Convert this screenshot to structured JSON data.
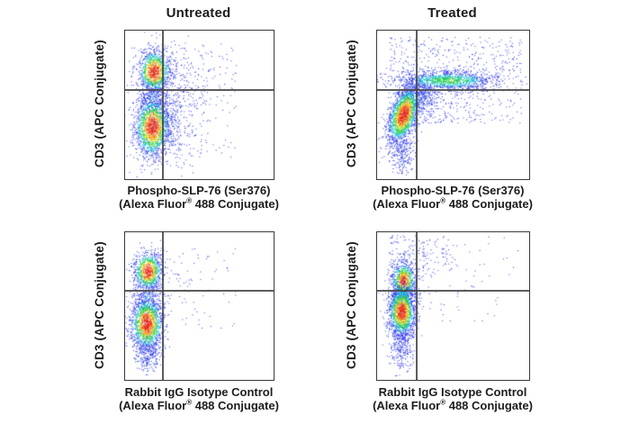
{
  "figure": {
    "background": "#ffffff",
    "text_color": "#1c1c1c",
    "border_color": "#3a3a3a",
    "gate_color": "#474747",
    "dot_palette": {
      "red": "#e11c1c",
      "orange": "#fa7d20",
      "yellow": "#f2e32a",
      "green": "#2fd32c",
      "green2": "#17c65a",
      "cyan": "#15bcd8",
      "blues": [
        "#2424e4",
        "#4040f2",
        "#1b50dc",
        "#3333ee"
      ]
    }
  },
  "chart_data": [
    {
      "type": "scatter",
      "panel": "top-left",
      "title": "Untreated",
      "ylabel": "CD3 (APC Conjugate)",
      "xlabel_line1": "Phospho-SLP-76 (Ser376)",
      "xlabel_line2_pre": "(Alexa Fluor",
      "xlabel_reg": "®",
      "xlabel_line2_post": " 488 Conjugate)",
      "gates": {
        "x_frac": 0.248,
        "y_frac": 0.394
      },
      "scatter_regions": [
        {
          "x0": 0.2,
          "y0": 0.1,
          "x1": 0.75,
          "y1": 0.85,
          "n": 150,
          "fade": 1.7
        }
      ],
      "populations": [
        {
          "name": "spray-upper",
          "cx": 0.33,
          "cy": 0.34,
          "sx": 0.15,
          "sy": 0.14,
          "n": 320,
          "hot": 0.17,
          "skew": 0
        },
        {
          "name": "spray-lower",
          "cx": 0.3,
          "cy": 0.66,
          "sx": 0.13,
          "sy": 0.15,
          "n": 320,
          "hot": 0.17,
          "skew": 0
        },
        {
          "name": "bridge",
          "cx": 0.19,
          "cy": 0.46,
          "sx": 0.05,
          "sy": 0.08,
          "n": 260,
          "hot": 0.3,
          "skew": 0
        },
        {
          "name": "cd3pos-cluster",
          "cx": 0.194,
          "cy": 0.273,
          "sx": 0.055,
          "sy": 0.073,
          "n": 1050,
          "hot": 1,
          "skew": 0
        },
        {
          "name": "cd3neg-cluster",
          "cx": 0.182,
          "cy": 0.648,
          "sx": 0.061,
          "sy": 0.103,
          "n": 1650,
          "hot": 1,
          "skew": 0
        }
      ]
    },
    {
      "type": "scatter",
      "panel": "top-right",
      "title": "Treated",
      "ylabel": "CD3 (APC Conjugate)",
      "xlabel_line1": "Phospho-SLP-76 (Ser376)",
      "xlabel_line2_pre": "(Alexa Fluor",
      "xlabel_reg": "®",
      "xlabel_line2_post": " 488 Conjugate)",
      "gates": {
        "x_frac": 0.254,
        "y_frac": 0.394
      },
      "scatter_regions": [
        {
          "x0": 0.08,
          "y0": 0.04,
          "x1": 0.95,
          "y1": 0.27,
          "n": 260,
          "fade": 1.2
        },
        {
          "x0": 0.3,
          "y0": 0.38,
          "x1": 0.95,
          "y1": 0.62,
          "n": 230,
          "fade": 1.5
        }
      ],
      "populations": [
        {
          "name": "lower-tail",
          "cx": 0.17,
          "cy": 0.82,
          "sx": 0.04,
          "sy": 0.07,
          "n": 220,
          "hot": 0.22,
          "skew": 0
        },
        {
          "name": "elbow",
          "cx": 0.266,
          "cy": 0.455,
          "sx": 0.07,
          "sy": 0.05,
          "n": 350,
          "hot": 0.3,
          "skew": 0
        },
        {
          "name": "phospho-positive-band",
          "cx": 0.462,
          "cy": 0.333,
          "sx": 0.178,
          "sy": 0.033,
          "n": 1300,
          "hot": 0.55,
          "skew": 0
        },
        {
          "name": "main-cluster",
          "cx": 0.172,
          "cy": 0.564,
          "sx": 0.047,
          "sy": 0.097,
          "n": 1900,
          "hot": 1,
          "skew": -0.25
        }
      ]
    },
    {
      "type": "scatter",
      "panel": "bottom-left",
      "title": "",
      "ylabel": "CD3 (APC Conjugate)",
      "xlabel_line1": "Rabbit IgG Isotype Control",
      "xlabel_line2_pre": "(Alexa Fluor",
      "xlabel_reg": "®",
      "xlabel_line2_post": " 488 Conjugate)",
      "gates": {
        "x_frac": 0.248,
        "y_frac": 0.39
      },
      "scatter_regions": [
        {
          "x0": 0.2,
          "y0": 0.1,
          "x1": 0.75,
          "y1": 0.65,
          "n": 110,
          "fade": 1.8
        }
      ],
      "populations": [
        {
          "name": "lower-tail",
          "cx": 0.15,
          "cy": 0.82,
          "sx": 0.045,
          "sy": 0.07,
          "n": 250,
          "hot": 0.22,
          "skew": 0
        },
        {
          "name": "bridge",
          "cx": 0.15,
          "cy": 0.44,
          "sx": 0.05,
          "sy": 0.08,
          "n": 250,
          "hot": 0.3,
          "skew": 0
        },
        {
          "name": "cd3pos-cluster",
          "cx": 0.152,
          "cy": 0.262,
          "sx": 0.048,
          "sy": 0.067,
          "n": 920,
          "hot": 1,
          "skew": 0
        },
        {
          "name": "cd3neg-cluster",
          "cx": 0.145,
          "cy": 0.616,
          "sx": 0.055,
          "sy": 0.091,
          "n": 1550,
          "hot": 1,
          "skew": 0
        }
      ]
    },
    {
      "type": "scatter",
      "panel": "bottom-right",
      "title": "",
      "ylabel": "CD3 (APC Conjugate)",
      "xlabel_line1": "Rabbit IgG Isotype Control",
      "xlabel_line2_pre": "(Alexa Fluor",
      "xlabel_reg": "®",
      "xlabel_line2_post": " 488 Conjugate)",
      "gates": {
        "x_frac": 0.254,
        "y_frac": 0.39
      },
      "scatter_regions": [
        {
          "x0": 0.08,
          "y0": 0.02,
          "x1": 0.5,
          "y1": 0.25,
          "n": 130,
          "fade": 1.5
        },
        {
          "x0": 0.3,
          "y0": 0.02,
          "x1": 0.95,
          "y1": 0.3,
          "n": 60,
          "fade": 2
        },
        {
          "x0": 0.25,
          "y0": 0.3,
          "x1": 0.85,
          "y1": 0.6,
          "n": 50,
          "fade": 2
        }
      ],
      "populations": [
        {
          "name": "lower-tail",
          "cx": 0.16,
          "cy": 0.76,
          "sx": 0.042,
          "sy": 0.09,
          "n": 300,
          "hot": 0.25,
          "skew": 0
        },
        {
          "name": "bridge",
          "cx": 0.165,
          "cy": 0.43,
          "sx": 0.045,
          "sy": 0.05,
          "n": 300,
          "hot": 0.45,
          "skew": 0
        },
        {
          "name": "cd3pos-cluster",
          "cx": 0.172,
          "cy": 0.323,
          "sx": 0.041,
          "sy": 0.061,
          "n": 850,
          "hot": 0.93,
          "skew": 0
        },
        {
          "name": "cd3neg-cluster",
          "cx": 0.16,
          "cy": 0.537,
          "sx": 0.044,
          "sy": 0.085,
          "n": 1500,
          "hot": 1,
          "skew": 0
        }
      ]
    }
  ]
}
